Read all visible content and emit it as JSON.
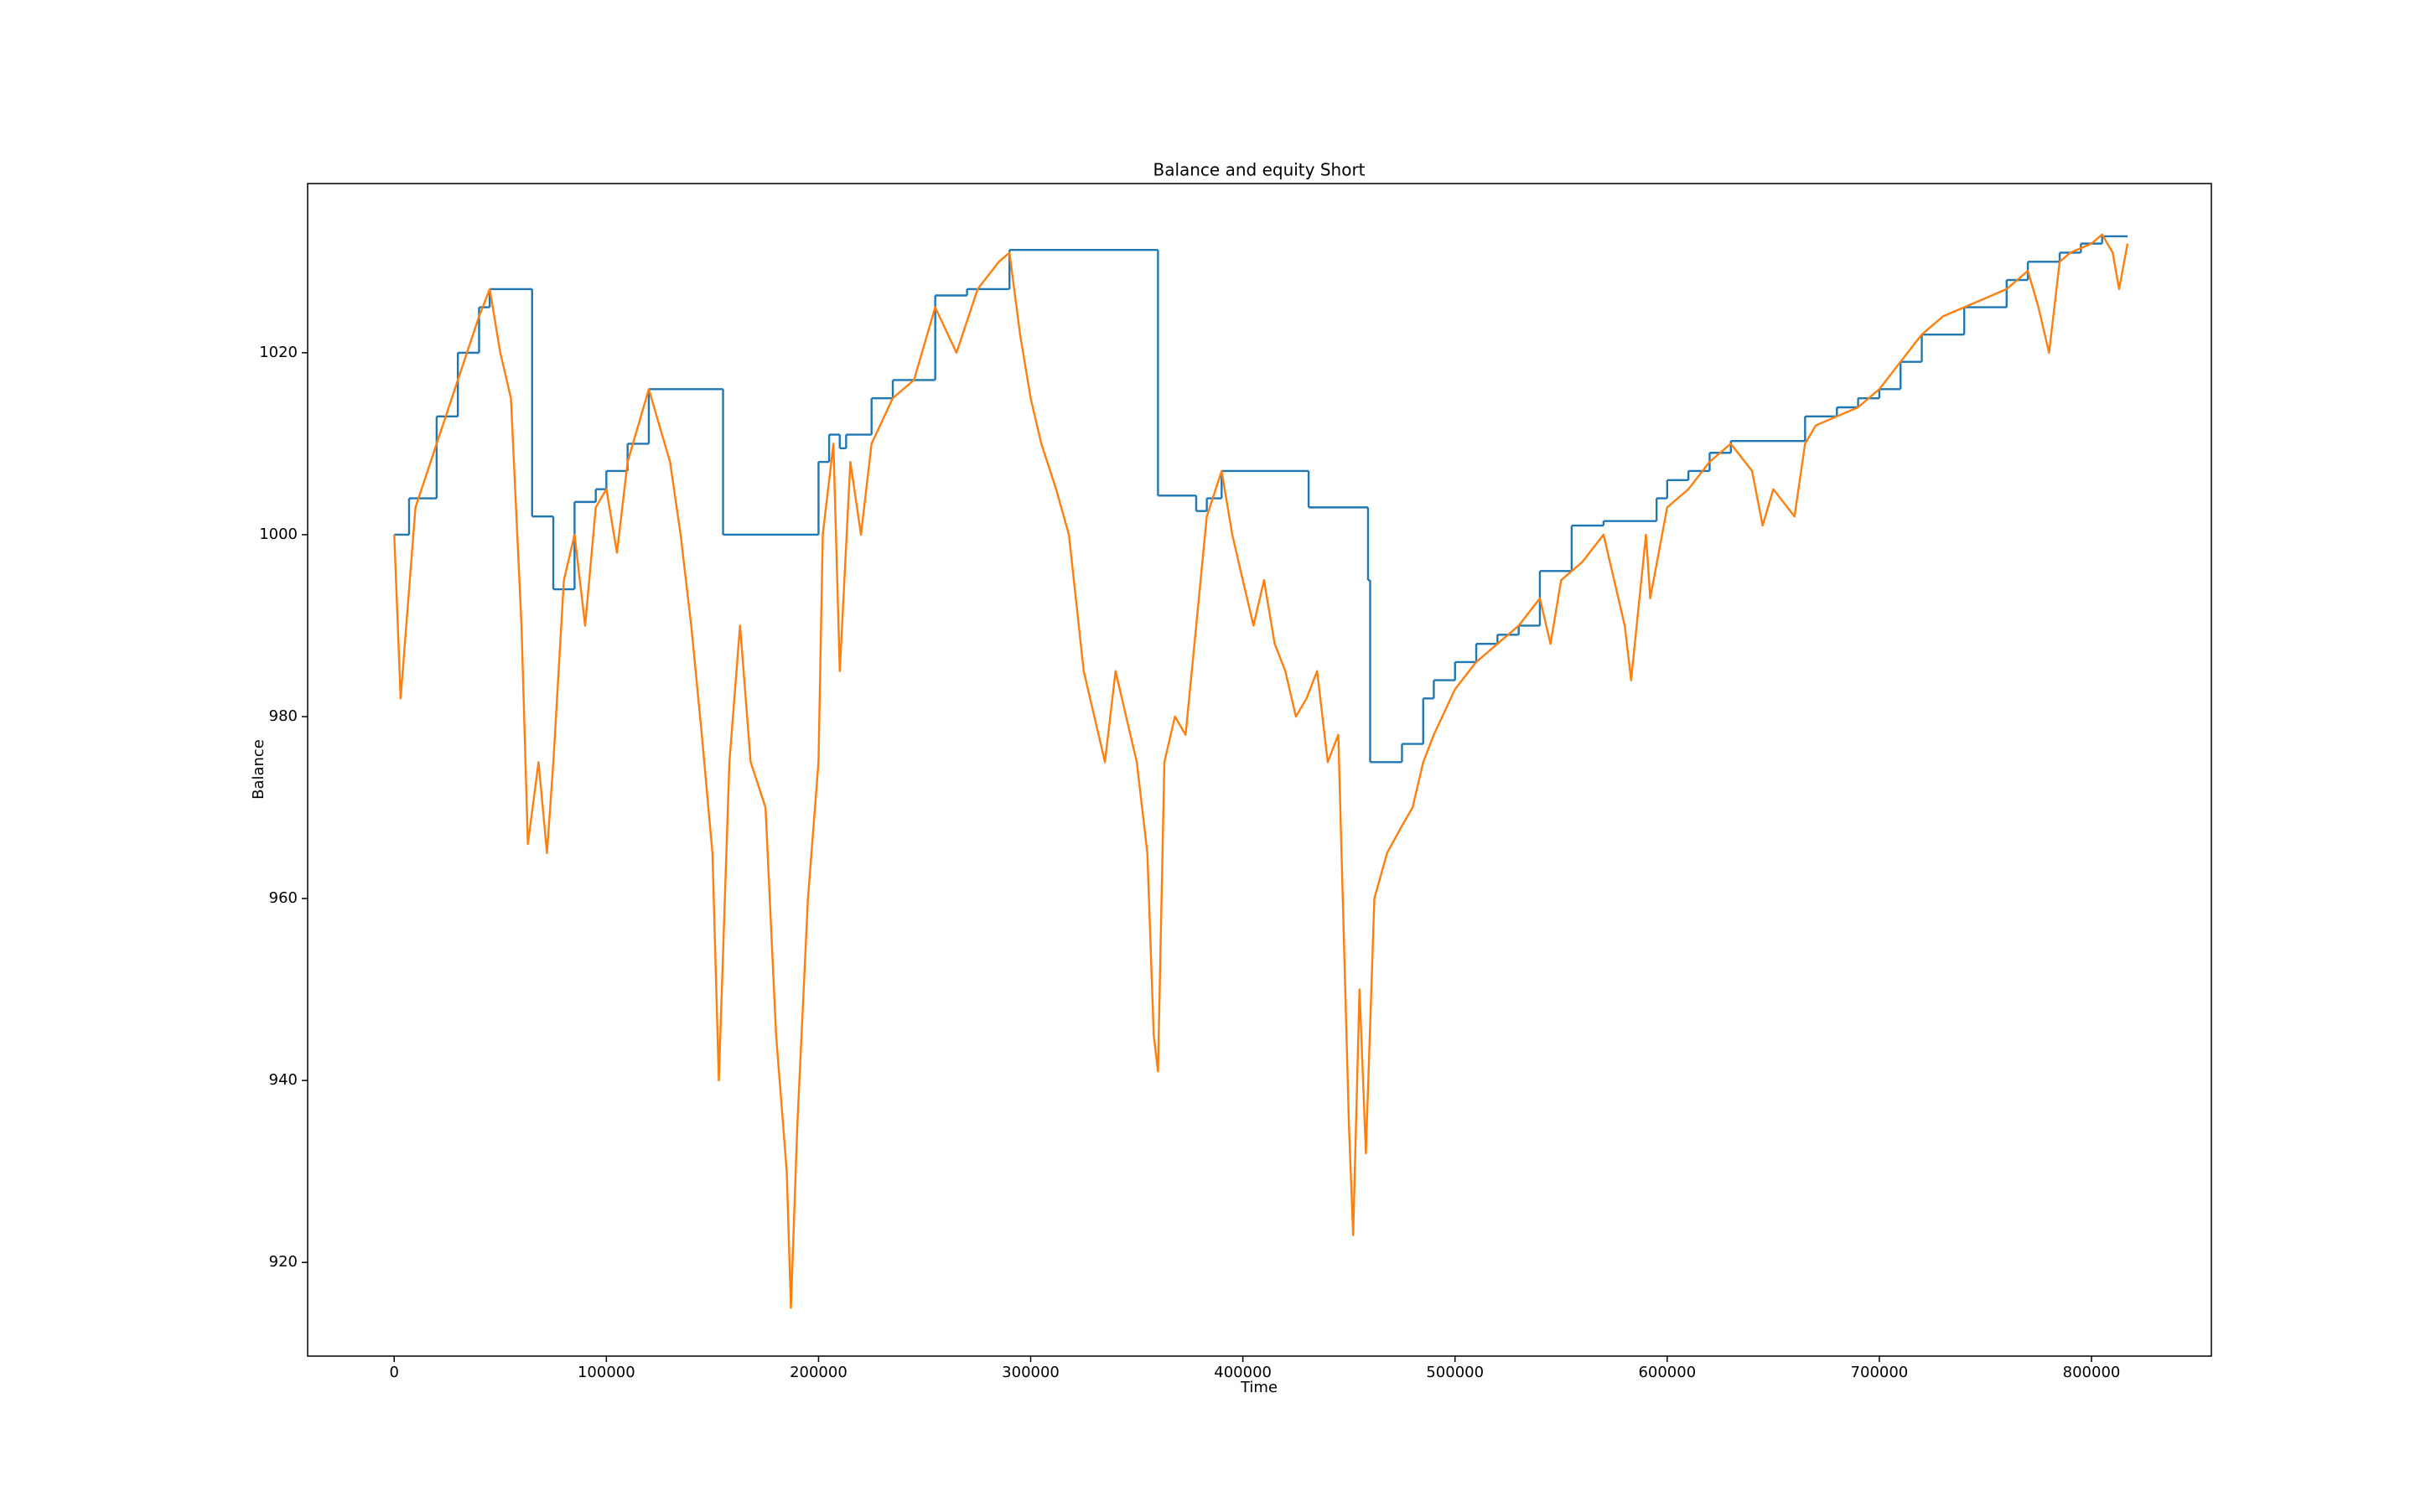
{
  "chart_data": {
    "type": "line",
    "title": "Balance and equity Short",
    "xlabel": "Time",
    "ylabel": "Balance",
    "xlim": [
      -40800,
      856500
    ],
    "ylim": [
      909.7,
      1038.6
    ],
    "xticks": [
      0,
      100000,
      200000,
      300000,
      400000,
      500000,
      600000,
      700000,
      800000
    ],
    "yticks": [
      920,
      940,
      960,
      980,
      1000,
      1020
    ],
    "series": [
      {
        "color": "#1f77b4",
        "step": "post",
        "x": [
          0,
          7000,
          20000,
          30000,
          40000,
          45000,
          65000,
          75000,
          85000,
          95000,
          100000,
          110000,
          120000,
          155000,
          200000,
          205000,
          210000,
          213000,
          225000,
          235000,
          255000,
          270000,
          290000,
          360000,
          378000,
          383000,
          390000,
          431000,
          459000,
          460000,
          475000,
          485000,
          490000,
          500000,
          510000,
          520000,
          530000,
          540000,
          555000,
          570000,
          595000,
          600000,
          610000,
          620000,
          630000,
          665000,
          680000,
          690000,
          700000,
          710000,
          720000,
          740000,
          760000,
          770000,
          785000,
          795000,
          805000,
          817000
        ],
        "values": [
          1000,
          1004,
          1013,
          1020,
          1025,
          1027,
          1002,
          994,
          1003.6,
          1005,
          1007,
          1010,
          1016,
          1000,
          1008,
          1011,
          1009.5,
          1011,
          1015,
          1017,
          1026.3,
          1027,
          1031.3,
          1004.3,
          1002.6,
          1004,
          1007,
          1003,
          995,
          975,
          977,
          982,
          984,
          986,
          988,
          989,
          990,
          996,
          1001,
          1001.5,
          1004,
          1006,
          1007,
          1009,
          1010.3,
          1013,
          1014,
          1015,
          1016,
          1019,
          1022,
          1025,
          1028,
          1030,
          1031,
          1032,
          1032.8,
          1032.8
        ]
      },
      {
        "color": "#ff7f0e",
        "x": [
          0,
          3000,
          10000,
          20000,
          30000,
          40000,
          45000,
          50000,
          55000,
          60000,
          63000,
          68000,
          72000,
          75000,
          80000,
          85000,
          90000,
          95000,
          100000,
          105000,
          110000,
          120000,
          125000,
          130000,
          135000,
          140000,
          145000,
          150000,
          153000,
          158000,
          163000,
          168000,
          175000,
          180000,
          185000,
          187000,
          190000,
          195000,
          200000,
          202000,
          207000,
          210000,
          215000,
          220000,
          225000,
          235000,
          245000,
          255000,
          265000,
          275000,
          285000,
          290000,
          295000,
          300000,
          305000,
          312000,
          318000,
          325000,
          330000,
          335000,
          340000,
          345000,
          350000,
          355000,
          358000,
          360000,
          363000,
          368000,
          373000,
          378000,
          383000,
          390000,
          395000,
          400000,
          405000,
          410000,
          415000,
          420000,
          425000,
          430000,
          435000,
          440000,
          445000,
          450000,
          452000,
          455000,
          458000,
          462000,
          468000,
          475000,
          480000,
          485000,
          490000,
          500000,
          510000,
          520000,
          530000,
          540000,
          545000,
          550000,
          560000,
          570000,
          580000,
          583000,
          590000,
          592000,
          600000,
          610000,
          620000,
          630000,
          640000,
          645000,
          650000,
          660000,
          665000,
          670000,
          680000,
          690000,
          700000,
          710000,
          720000,
          730000,
          740000,
          750000,
          760000,
          770000,
          775000,
          780000,
          785000,
          790000,
          800000,
          805000,
          810000,
          813000,
          817000
        ],
        "values": [
          1000,
          982,
          1003,
          1010,
          1017,
          1024,
          1027,
          1020,
          1015,
          990,
          966,
          975,
          965,
          975,
          995,
          1000,
          990,
          1003,
          1005,
          998,
          1008,
          1016,
          1012,
          1008,
          1000,
          990,
          978,
          965,
          940,
          975,
          990,
          975,
          970,
          945,
          930,
          915,
          935,
          960,
          975,
          1000,
          1010,
          985,
          1008,
          1000,
          1010,
          1015,
          1017,
          1025,
          1020,
          1027,
          1030,
          1031,
          1022,
          1015,
          1010,
          1005,
          1000,
          985,
          980,
          975,
          985,
          980,
          975,
          965,
          945,
          941,
          975,
          980,
          978,
          990,
          1002,
          1007,
          1000,
          995,
          990,
          995,
          988,
          985,
          980,
          982,
          985,
          975,
          978,
          935,
          923,
          950,
          932,
          960,
          965,
          968,
          970,
          975,
          978,
          983,
          986,
          988,
          990,
          993,
          988,
          995,
          997,
          1000,
          990,
          984,
          1000,
          993,
          1003,
          1005,
          1008,
          1010,
          1007,
          1001,
          1005,
          1002,
          1010,
          1012,
          1013,
          1014,
          1016,
          1019,
          1022,
          1024,
          1025,
          1026,
          1027,
          1029,
          1025,
          1020,
          1030,
          1031,
          1032,
          1033,
          1031,
          1027,
          1032
        ]
      }
    ]
  }
}
